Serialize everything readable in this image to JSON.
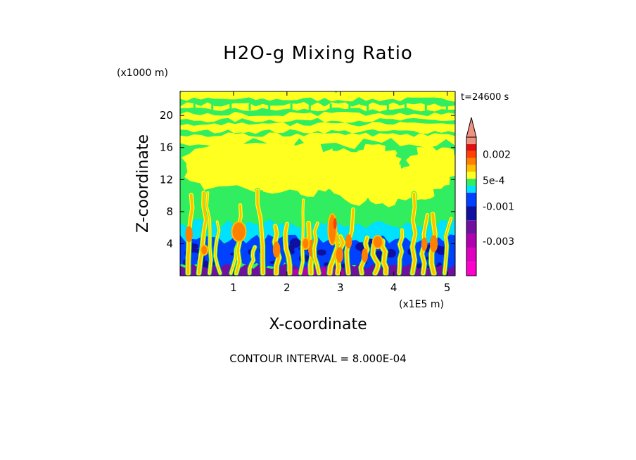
{
  "chart_data": {
    "type": "heatmap",
    "title": "H2O-g Mixing Ratio",
    "time_label": "t=24600 s",
    "xlabel": "X-coordinate",
    "ylabel": "Z-coordinate",
    "x_unit": "(x1E5 m)",
    "y_unit": "(x1000 m)",
    "xlim": [
      0,
      5.15
    ],
    "ylim": [
      0,
      23
    ],
    "x_ticks": [
      1,
      2,
      3,
      4,
      5
    ],
    "y_ticks": [
      4,
      8,
      12,
      16,
      20
    ],
    "contour_interval_text": "CONTOUR INTERVAL = 8.000E-04",
    "colorbar": {
      "labels": [
        {
          "text": "0.002",
          "value": 0.002
        },
        {
          "text": "5e-4",
          "value": 0.0005
        },
        {
          "text": "-0.001",
          "value": -0.001
        },
        {
          "text": "-0.003",
          "value": -0.003
        }
      ],
      "levels": [
        {
          "color": "#ff00cc",
          "lo": -0.005,
          "hi": -0.0042
        },
        {
          "color": "#e000c0",
          "lo": -0.0042,
          "hi": -0.0034
        },
        {
          "color": "#b000b0",
          "lo": -0.0034,
          "hi": -0.0026
        },
        {
          "color": "#7010a0",
          "lo": -0.0026,
          "hi": -0.0018
        },
        {
          "color": "#1010a0",
          "lo": -0.0018,
          "hi": -0.001
        },
        {
          "color": "#0040ff",
          "lo": -0.001,
          "hi": -0.0002
        },
        {
          "color": "#00e0ff",
          "lo": -0.0002,
          "hi": 0.0002
        },
        {
          "color": "#30ee60",
          "lo": 0.0002,
          "hi": 0.0006
        },
        {
          "color": "#ffff20",
          "lo": 0.0006,
          "hi": 0.001
        },
        {
          "color": "#ffc000",
          "lo": 0.001,
          "hi": 0.0014
        },
        {
          "color": "#ff8000",
          "lo": 0.0014,
          "hi": 0.0018
        },
        {
          "color": "#ff4000",
          "lo": 0.0018,
          "hi": 0.0022
        },
        {
          "color": "#e01010",
          "lo": 0.0022,
          "hi": 0.0026
        },
        {
          "color": "#f09080",
          "lo": 0.0026,
          "hi": 0.003
        }
      ]
    },
    "field_approx": {
      "description_free": true,
      "layers_z_km": [
        {
          "z0": 0,
          "z1": 1.2,
          "level": "purple"
        },
        {
          "z0": 1.2,
          "z1": 4.5,
          "level": "blue"
        },
        {
          "z0": 4.5,
          "z1": 6.3,
          "level": "cyan"
        },
        {
          "z0": 6.3,
          "z1": 9.5,
          "level": "green"
        },
        {
          "z0": 9.5,
          "z1": 16.5,
          "level": "mixed-green-yellow"
        },
        {
          "z0": 16.5,
          "z1": 23,
          "level": "mixed-yellow-green-stripes"
        }
      ],
      "plumes_x": [
        0.15,
        0.35,
        0.55,
        0.75,
        0.95,
        1.05,
        1.3,
        1.55,
        1.8,
        2.05,
        2.25,
        2.45,
        2.6,
        2.8,
        2.95,
        3.15,
        3.4,
        3.65,
        3.85,
        4.1,
        4.35,
        4.55,
        4.75,
        4.95
      ]
    }
  }
}
